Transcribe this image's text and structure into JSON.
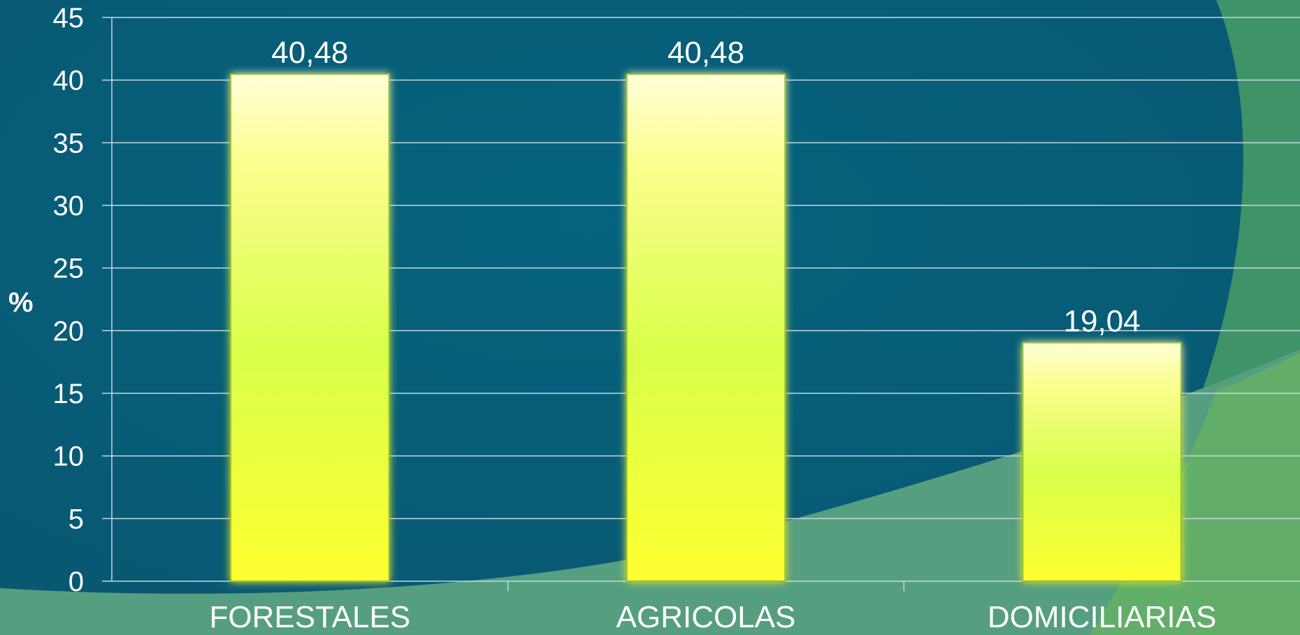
{
  "colors": {
    "background": "#04607a",
    "background_dark": "#0b4f66",
    "accent_green": "#3e9468",
    "accent_light_green": "#5fae6b",
    "gridline": "#c9d8df",
    "bar_top": "#ffffd8",
    "bar_mid": "#d8ff4a",
    "bar_bottom": "#ffff30",
    "bar_outline": "#9bbd2e",
    "text": "#ffffff"
  },
  "chart_data": {
    "type": "bar",
    "categories": [
      "FORESTALES",
      "AGRICOLAS",
      "DOMICILIARIAS"
    ],
    "values": [
      40.48,
      40.48,
      19.04
    ],
    "data_labels": [
      "40,48",
      "40,48",
      "19,04"
    ],
    "ylabel": "%",
    "xlabel": "",
    "ylim": [
      0,
      45
    ],
    "yticks": [
      0,
      5,
      10,
      15,
      20,
      25,
      30,
      35,
      40,
      45
    ],
    "grid": true,
    "legend": "none"
  }
}
